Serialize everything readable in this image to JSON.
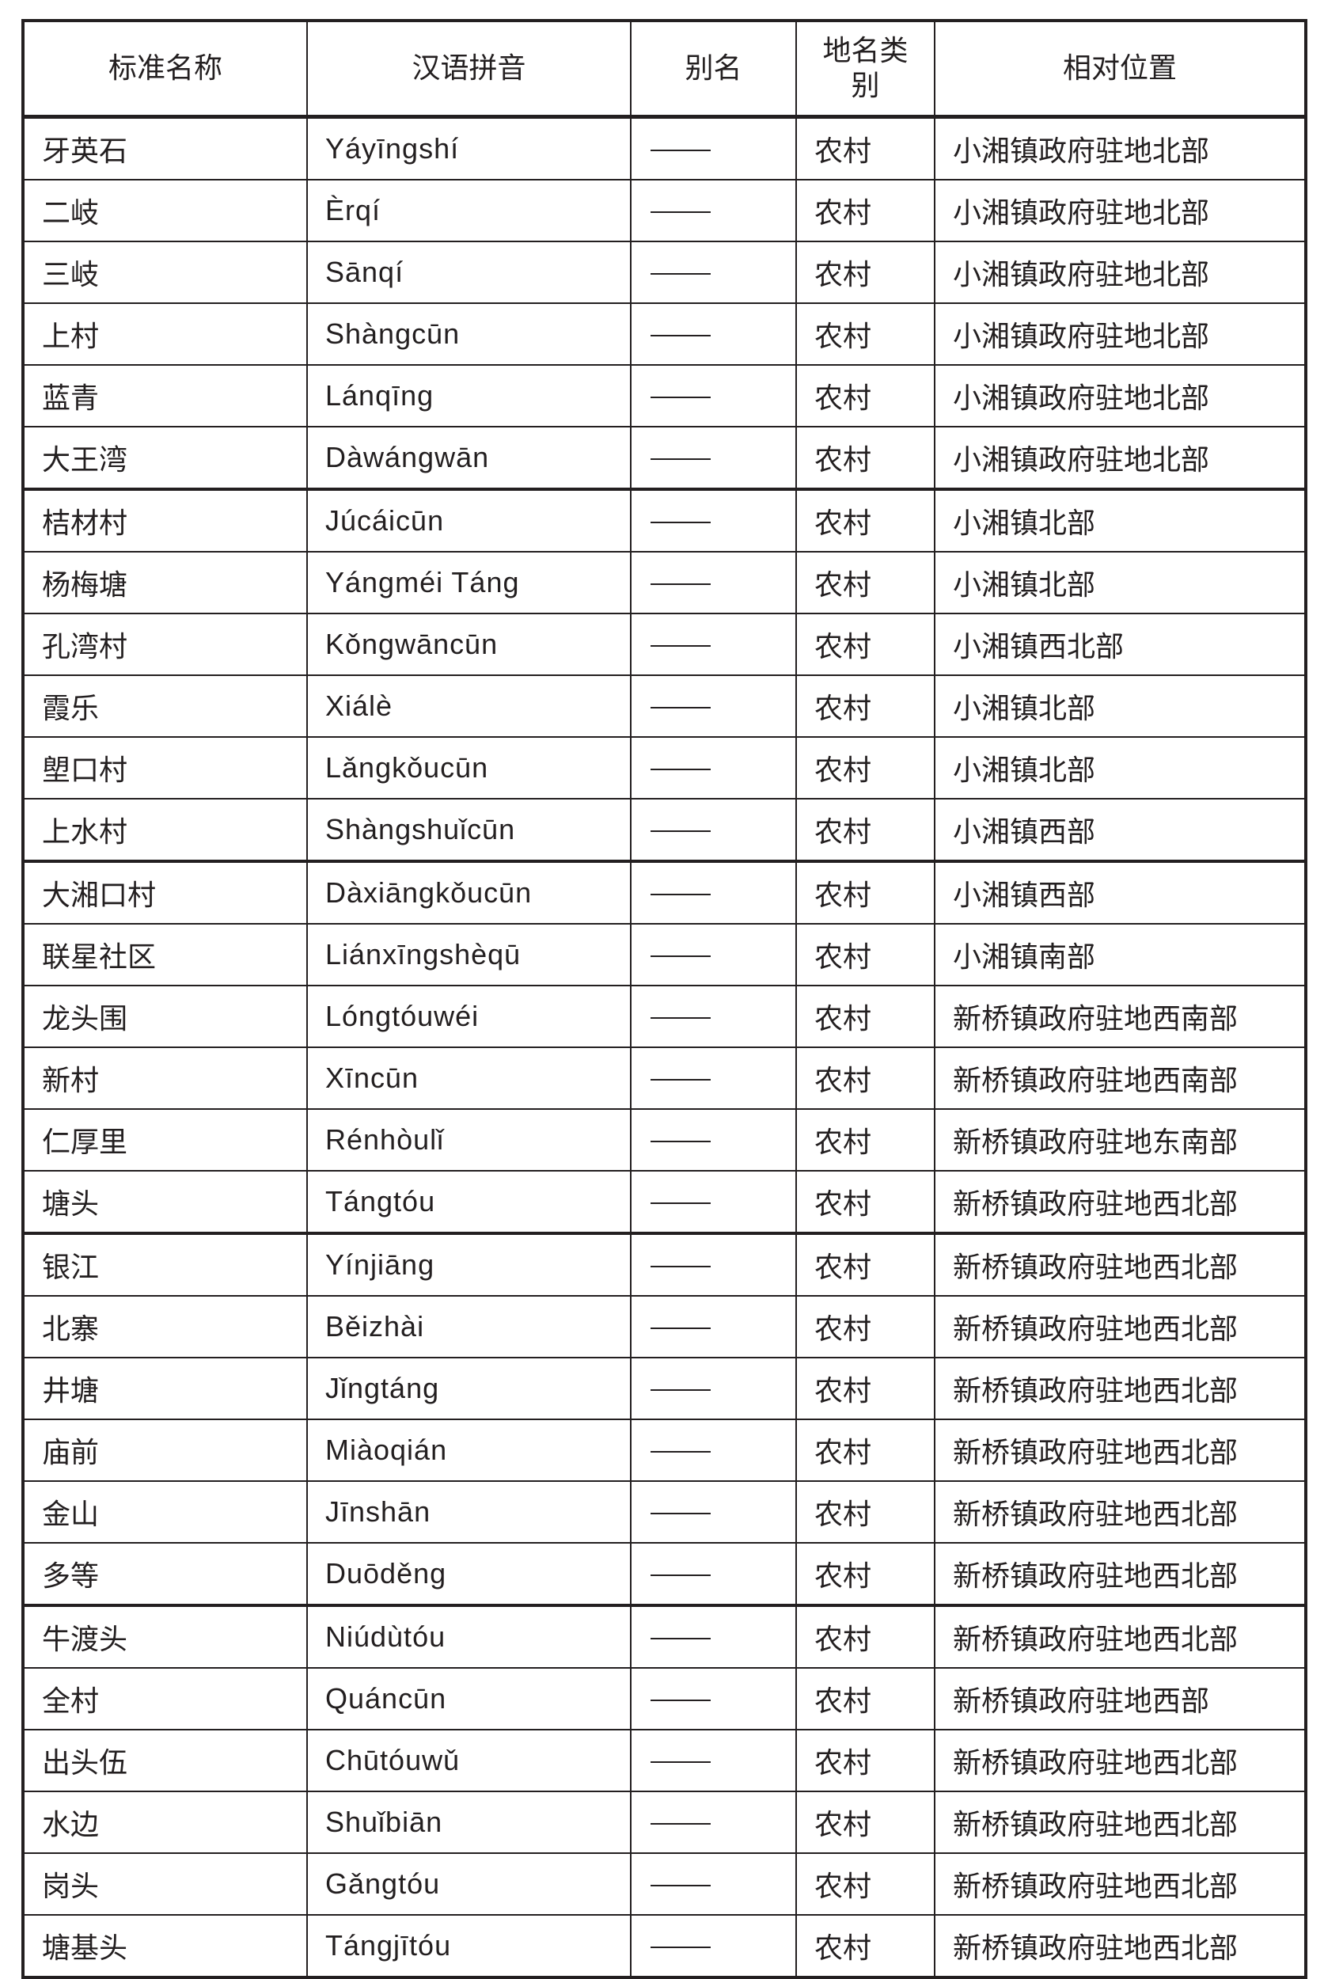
{
  "headers": {
    "name": "标准名称",
    "pinyin": "汉语拼音",
    "alias": "别名",
    "category": "地名类别",
    "location": "相对位置"
  },
  "rows": [
    {
      "name": "牙英石",
      "pinyin": "Yáyīngshí",
      "alias": "——",
      "category": "农村",
      "location": "小湘镇政府驻地北部"
    },
    {
      "name": "二岐",
      "pinyin": "Èrqí",
      "alias": "——",
      "category": "农村",
      "location": "小湘镇政府驻地北部"
    },
    {
      "name": "三岐",
      "pinyin": "Sānqí",
      "alias": "——",
      "category": "农村",
      "location": "小湘镇政府驻地北部"
    },
    {
      "name": "上村",
      "pinyin": "Shàngcūn",
      "alias": "——",
      "category": "农村",
      "location": "小湘镇政府驻地北部"
    },
    {
      "name": "蓝青",
      "pinyin": "Lánqīng",
      "alias": "——",
      "category": "农村",
      "location": "小湘镇政府驻地北部"
    },
    {
      "name": "大王湾",
      "pinyin": "Dàwángwān",
      "alias": "——",
      "category": "农村",
      "location": "小湘镇政府驻地北部"
    },
    {
      "name": "桔材村",
      "pinyin": "Júcáicūn",
      "alias": "——",
      "category": "农村",
      "location": "小湘镇北部"
    },
    {
      "name": "杨梅塘",
      "pinyin": "Yángméi Táng",
      "alias": "——",
      "category": "农村",
      "location": "小湘镇北部"
    },
    {
      "name": "孔湾村",
      "pinyin": "Kǒngwāncūn",
      "alias": "——",
      "category": "农村",
      "location": "小湘镇西北部"
    },
    {
      "name": "霞乐",
      "pinyin": "Xiálè",
      "alias": "——",
      "category": "农村",
      "location": "小湘镇北部"
    },
    {
      "name": "塱口村",
      "pinyin": "Lǎngkǒucūn",
      "alias": "——",
      "category": "农村",
      "location": "小湘镇北部"
    },
    {
      "name": "上水村",
      "pinyin": "Shàngshuǐcūn",
      "alias": "——",
      "category": "农村",
      "location": "小湘镇西部"
    },
    {
      "name": "大湘口村",
      "pinyin": "Dàxiāngkǒucūn",
      "alias": "——",
      "category": "农村",
      "location": "小湘镇西部"
    },
    {
      "name": "联星社区",
      "pinyin": "Liánxīngshèqū",
      "alias": "——",
      "category": "农村",
      "location": "小湘镇南部"
    },
    {
      "name": "龙头围",
      "pinyin": "Lóngtóuwéi",
      "alias": "——",
      "category": "农村",
      "location": "新桥镇政府驻地西南部"
    },
    {
      "name": "新村",
      "pinyin": "Xīncūn",
      "alias": "——",
      "category": "农村",
      "location": "新桥镇政府驻地西南部"
    },
    {
      "name": "仁厚里",
      "pinyin": "Rénhòulǐ",
      "alias": "——",
      "category": "农村",
      "location": "新桥镇政府驻地东南部"
    },
    {
      "name": "塘头",
      "pinyin": "Tángtóu",
      "alias": "——",
      "category": "农村",
      "location": "新桥镇政府驻地西北部"
    },
    {
      "name": "银江",
      "pinyin": "Yínjiāng",
      "alias": "——",
      "category": "农村",
      "location": "新桥镇政府驻地西北部"
    },
    {
      "name": "北寨",
      "pinyin": "Běizhài",
      "alias": "——",
      "category": "农村",
      "location": "新桥镇政府驻地西北部"
    },
    {
      "name": "井塘",
      "pinyin": "Jǐngtáng",
      "alias": "——",
      "category": "农村",
      "location": "新桥镇政府驻地西北部"
    },
    {
      "name": "庙前",
      "pinyin": "Miàoqián",
      "alias": "——",
      "category": "农村",
      "location": "新桥镇政府驻地西北部"
    },
    {
      "name": "金山",
      "pinyin": "Jīnshān",
      "alias": "——",
      "category": "农村",
      "location": "新桥镇政府驻地西北部"
    },
    {
      "name": "多等",
      "pinyin": "Duōděng",
      "alias": "——",
      "category": "农村",
      "location": "新桥镇政府驻地西北部"
    },
    {
      "name": "牛渡头",
      "pinyin": "Niúdùtóu",
      "alias": "——",
      "category": "农村",
      "location": "新桥镇政府驻地西北部"
    },
    {
      "name": "全村",
      "pinyin": "Quáncūn",
      "alias": "——",
      "category": "农村",
      "location": "新桥镇政府驻地西部"
    },
    {
      "name": "出头伍",
      "pinyin": "Chūtóuwǔ",
      "alias": "——",
      "category": "农村",
      "location": "新桥镇政府驻地西北部"
    },
    {
      "name": "水边",
      "pinyin": "Shuǐbiān",
      "alias": "——",
      "category": "农村",
      "location": "新桥镇政府驻地西北部"
    },
    {
      "name": "岗头",
      "pinyin": "Gǎngtóu",
      "alias": "——",
      "category": "农村",
      "location": "新桥镇政府驻地西北部"
    },
    {
      "name": "塘基头",
      "pinyin": "Tángjītóu",
      "alias": "——",
      "category": "农村",
      "location": "新桥镇政府驻地西北部"
    }
  ]
}
